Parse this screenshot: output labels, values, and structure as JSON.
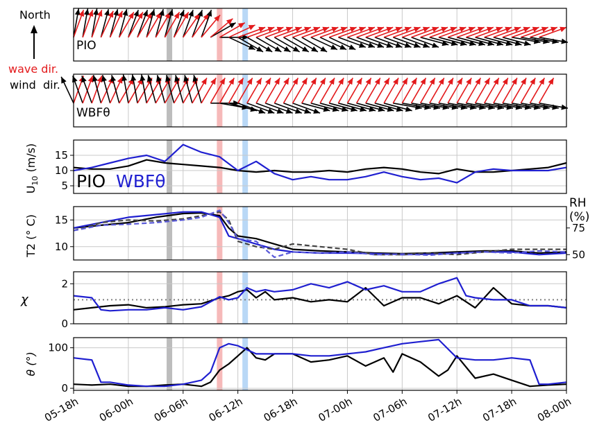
{
  "chart_data": {
    "type": "line",
    "time_axis": {
      "tick_labels": [
        "05-18h",
        "06-00h",
        "06-06h",
        "06-12h",
        "06-18h",
        "07-00h",
        "07-06h",
        "07-12h",
        "07-18h",
        "08-00h"
      ],
      "tick_hours": [
        0,
        6,
        12,
        18,
        24,
        30,
        36,
        42,
        48,
        54
      ],
      "range_hours": [
        0,
        54
      ],
      "grid": true
    },
    "highlight_bands": [
      {
        "hour": 10.5,
        "color": "#bdbdbd"
      },
      {
        "hour": 16.0,
        "color": "#f6b9b9"
      },
      {
        "hour": 18.8,
        "color": "#b9d8f6"
      }
    ],
    "legend_arrows": {
      "north": "North",
      "wave": "wave dir.",
      "wind": "wind  dir."
    },
    "panels": [
      {
        "id": "pio_dirs",
        "type": "quiver",
        "label": "PIO",
        "wave_color": "#e31a1c",
        "wind_color": "#000000",
        "wave_dir_deg": [
          20,
          20,
          20,
          25,
          25,
          30,
          30,
          30,
          30,
          30,
          30,
          30,
          35,
          35,
          40,
          50,
          60,
          65,
          70,
          70,
          70,
          70,
          70,
          70,
          70,
          70,
          70,
          70,
          70,
          70,
          70,
          70,
          70,
          70,
          70,
          70,
          70,
          70,
          70,
          70,
          70,
          70,
          70,
          70,
          70,
          70,
          70,
          70,
          70,
          70,
          70,
          70,
          70,
          70,
          70
        ],
        "wind_dir_deg": [
          10,
          10,
          10,
          15,
          15,
          15,
          20,
          20,
          15,
          15,
          15,
          20,
          20,
          20,
          20,
          60,
          90,
          115,
          120,
          120,
          120,
          120,
          120,
          120,
          120,
          120,
          115,
          115,
          115,
          110,
          110,
          110,
          110,
          110,
          110,
          110,
          110,
          110,
          105,
          105,
          105,
          105,
          105,
          105,
          105,
          105,
          105,
          105,
          100,
          100,
          100,
          100,
          100,
          100,
          100
        ]
      },
      {
        "id": "wbf_dirs",
        "type": "quiver",
        "label": "WBFθ",
        "wave_color": "#e31a1c",
        "wind_color": "#000000",
        "wave_dir_deg": [
          20,
          20,
          20,
          25,
          25,
          30,
          30,
          30,
          30,
          30,
          30,
          30,
          30,
          30,
          30,
          30,
          30,
          30,
          30,
          30,
          30,
          30,
          30,
          30,
          30,
          30,
          30,
          30,
          30,
          30,
          30,
          30,
          30,
          30,
          30,
          30,
          30,
          30,
          30,
          30,
          30,
          30,
          30,
          30,
          30,
          30,
          30,
          30,
          30,
          30,
          30,
          30,
          30,
          30,
          30
        ],
        "wind_dir_deg": [
          335,
          340,
          340,
          345,
          345,
          345,
          350,
          350,
          350,
          345,
          345,
          345,
          345,
          345,
          345,
          90,
          100,
          105,
          110,
          110,
          110,
          110,
          110,
          110,
          110,
          105,
          105,
          105,
          105,
          105,
          105,
          105,
          105,
          105,
          105,
          100,
          100,
          100,
          100,
          100,
          100,
          100,
          100,
          100,
          100,
          100,
          100,
          100,
          100,
          100,
          100,
          100,
          100,
          100,
          100
        ]
      },
      {
        "id": "u10",
        "ylabel": "U10 (m/s)",
        "ylim": [
          2.5,
          20
        ],
        "yticks": [
          5,
          10,
          15
        ],
        "legend": [
          "PIO",
          "WBFθ"
        ],
        "series": [
          {
            "name": "PIO",
            "color": "#000000",
            "x": [
              0,
              2,
              4,
              6,
              8,
              10,
              12,
              14,
              16,
              18,
              20,
              22,
              24,
              26,
              28,
              30,
              32,
              34,
              36,
              38,
              40,
              42,
              44,
              46,
              48,
              50,
              52,
              54
            ],
            "y": [
              11,
              10.5,
              10.5,
              11.5,
              13.5,
              12.5,
              12,
              11.5,
              11,
              10,
              9.5,
              10,
              9.5,
              9.5,
              10,
              9.5,
              10.5,
              11,
              10.5,
              9.5,
              9,
              10.5,
              9.5,
              9.5,
              10,
              10.5,
              11,
              12.5
            ]
          },
          {
            "name": "WBFθ",
            "color": "#1f1fd0",
            "x": [
              0,
              2,
              4,
              6,
              8,
              10,
              12,
              14,
              16,
              18,
              20,
              22,
              24,
              26,
              28,
              30,
              32,
              34,
              36,
              38,
              40,
              42,
              44,
              46,
              48,
              50,
              52,
              54
            ],
            "y": [
              10,
              11,
              12.5,
              14,
              15,
              13,
              18.5,
              16,
              14.5,
              10,
              13,
              9,
              7,
              8,
              7,
              7,
              8,
              9.5,
              8,
              7,
              7.5,
              6,
              9.5,
              10.5,
              10,
              10,
              10,
              11
            ]
          }
        ]
      },
      {
        "id": "t2",
        "ylabel": "T2 (° C)",
        "ylim": [
          7.5,
          17.5
        ],
        "yticks": [
          10,
          15
        ],
        "right_axis": {
          "label": [
            "RH",
            "(%)"
          ],
          "ticks": [
            50,
            75
          ],
          "range": [
            45,
            95
          ]
        },
        "series": [
          {
            "name": "PIO T2",
            "color": "#000000",
            "x": [
              0,
              3,
              6,
              9,
              12,
              14,
              16,
              17,
              18,
              20,
              22,
              24,
              27,
              30,
              33,
              36,
              39,
              42,
              45,
              48,
              51,
              54
            ],
            "y": [
              13.5,
              14,
              14.5,
              15.5,
              16.2,
              16.3,
              15.8,
              13.5,
              12,
              11.5,
              10.5,
              9.5,
              9.2,
              9,
              8.8,
              8.7,
              8.8,
              9,
              9.2,
              9.2,
              8.8,
              9
            ]
          },
          {
            "name": "WBFθ T2",
            "color": "#1f1fd0",
            "x": [
              0,
              3,
              6,
              9,
              12,
              14,
              16,
              17,
              18,
              20,
              22,
              24,
              27,
              30,
              33,
              36,
              39,
              42,
              45,
              48,
              51,
              54
            ],
            "y": [
              13.5,
              14.5,
              15.5,
              16,
              16.5,
              16.5,
              15.5,
              12,
              11.5,
              10.5,
              9.5,
              9,
              8.8,
              8.8,
              8.7,
              8.5,
              8.6,
              8.8,
              9,
              9,
              8.5,
              8.8
            ]
          },
          {
            "name": "PIO RH",
            "color": "#444444",
            "dashed": true,
            "x": [
              0,
              3,
              6,
              9,
              12,
              14,
              16,
              17,
              18,
              20,
              22,
              24,
              27,
              30,
              33,
              36,
              39,
              42,
              45,
              48,
              51,
              54
            ],
            "y": [
              13,
              14.5,
              15,
              14.8,
              15.2,
              15.8,
              16.5,
              15,
              11,
              10,
              9.5,
              10.5,
              10,
              9.5,
              8.5,
              8.5,
              8.8,
              8.5,
              9,
              9.5,
              9.5,
              9.5
            ]
          },
          {
            "name": "WBFθ RH",
            "color": "#5a5ad8",
            "dashed": true,
            "x": [
              0,
              3,
              6,
              9,
              12,
              14,
              16,
              17,
              18,
              20,
              22,
              24,
              27,
              30,
              33,
              36,
              39,
              42,
              45,
              48,
              51,
              54
            ],
            "y": [
              13,
              14,
              14.2,
              14.5,
              15,
              15.5,
              16.8,
              14.5,
              11.5,
              11,
              8,
              9,
              8.8,
              9,
              8.5,
              8.6,
              8.4,
              8.8,
              9,
              8.8,
              9.2,
              9
            ]
          }
        ]
      },
      {
        "id": "chi",
        "ylabel": "χ",
        "ylim": [
          0,
          2.6
        ],
        "yticks": [
          0,
          2
        ],
        "reference_line": 1.2,
        "series": [
          {
            "name": "PIO",
            "color": "#000000",
            "x": [
              0,
              2,
              4,
              6,
              8,
              10,
              12,
              14,
              16,
              17,
              18,
              19,
              20,
              21,
              22,
              24,
              26,
              28,
              30,
              32,
              34,
              36,
              38,
              40,
              42,
              44,
              46,
              48,
              50,
              52,
              54
            ],
            "y": [
              0.7,
              0.8,
              0.9,
              0.95,
              0.8,
              0.85,
              0.95,
              1.0,
              1.3,
              1.4,
              1.6,
              1.7,
              1.3,
              1.6,
              1.2,
              1.3,
              1.1,
              1.2,
              1.1,
              1.8,
              0.9,
              1.3,
              1.3,
              1.0,
              1.4,
              0.8,
              1.8,
              1.0,
              0.9,
              0.9,
              0.8
            ]
          },
          {
            "name": "WBFθ",
            "color": "#1f1fd0",
            "x": [
              0,
              2,
              3,
              4,
              6,
              8,
              10,
              12,
              14,
              16,
              17,
              18,
              19,
              20,
              21,
              22,
              24,
              26,
              28,
              30,
              32,
              34,
              36,
              38,
              40,
              42,
              43,
              44,
              46,
              48,
              50,
              52,
              54
            ],
            "y": [
              1.4,
              1.3,
              0.7,
              0.65,
              0.7,
              0.7,
              0.8,
              0.7,
              0.85,
              1.35,
              1.2,
              1.3,
              1.8,
              1.6,
              1.7,
              1.6,
              1.7,
              2.0,
              1.8,
              2.1,
              1.7,
              1.9,
              1.6,
              1.6,
              2.0,
              2.3,
              1.4,
              1.3,
              1.2,
              1.2,
              0.9,
              0.9,
              0.8
            ]
          }
        ]
      },
      {
        "id": "theta",
        "ylabel": "θ (°)",
        "ylim": [
          -5,
          125
        ],
        "yticks": [
          0,
          100
        ],
        "series": [
          {
            "name": "PIO",
            "color": "#000000",
            "x": [
              0,
              2,
              4,
              6,
              8,
              10,
              12,
              14,
              15,
              16,
              17,
              18,
              19,
              20,
              21,
              22,
              24,
              26,
              28,
              30,
              32,
              34,
              35,
              36,
              38,
              40,
              41,
              42,
              44,
              46,
              48,
              50,
              52,
              54
            ],
            "y": [
              10,
              8,
              10,
              5,
              5,
              8,
              10,
              5,
              15,
              45,
              60,
              80,
              100,
              75,
              70,
              85,
              85,
              65,
              70,
              80,
              55,
              75,
              40,
              85,
              65,
              30,
              45,
              80,
              25,
              35,
              20,
              5,
              8,
              10
            ]
          },
          {
            "name": "WBFθ",
            "color": "#1f1fd0",
            "x": [
              0,
              2,
              3,
              4,
              6,
              8,
              10,
              12,
              14,
              15,
              16,
              17,
              18,
              19,
              20,
              22,
              24,
              26,
              28,
              30,
              32,
              34,
              36,
              38,
              40,
              42,
              44,
              46,
              48,
              50,
              51,
              52,
              54
            ],
            "y": [
              75,
              70,
              15,
              15,
              8,
              5,
              5,
              10,
              20,
              40,
              100,
              110,
              105,
              95,
              85,
              85,
              85,
              80,
              80,
              85,
              90,
              100,
              110,
              115,
              120,
              75,
              70,
              70,
              75,
              70,
              10,
              10,
              15
            ]
          }
        ]
      }
    ],
    "legend_u10": {
      "pio": "PIO",
      "wbf": "WBFθ"
    },
    "axis_labels": {
      "u10": "U10 (m/s)",
      "t2": "T2 (° C)",
      "rh_top": "RH",
      "rh_bottom": "(%)",
      "chi": "χ",
      "theta": "θ (°)"
    }
  }
}
